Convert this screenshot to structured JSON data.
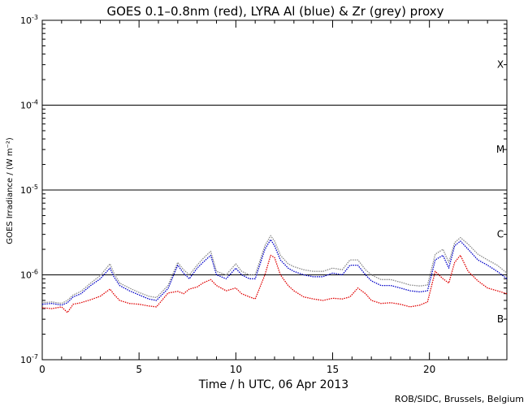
{
  "chart_data": {
    "type": "line",
    "title": "GOES 0.1–0.8nm (red), LYRA Al (blue) & Zr (grey) proxy",
    "xlabel": "Time / h UTC, 06 Apr 2013",
    "ylabel": "GOES Irradiance / (W m⁻²)",
    "credit": "ROB/SIDC, Brussels, Belgium",
    "xlim": [
      0,
      24
    ],
    "ylim": [
      1e-07,
      0.001
    ],
    "yscale": "log",
    "xticks": [
      0,
      5,
      10,
      15,
      20
    ],
    "xtick_labels": [
      "0",
      "5",
      "10",
      "15",
      "20"
    ],
    "yticks": [
      {
        "base": "10",
        "exp": "-7",
        "value": 1e-07
      },
      {
        "base": "10",
        "exp": "-6",
        "value": 1e-06
      },
      {
        "base": "10",
        "exp": "-5",
        "value": 1e-05
      },
      {
        "base": "10",
        "exp": "-4",
        "value": 0.0001
      },
      {
        "base": "10",
        "exp": "-3",
        "value": 0.001
      }
    ],
    "flare_lines": [
      1e-06,
      1e-05,
      0.0001
    ],
    "flare_classes": [
      {
        "label": "X",
        "value": 0.0003
      },
      {
        "label": "M",
        "value": 3e-05
      },
      {
        "label": "C",
        "value": 3e-06
      },
      {
        "label": "B",
        "value": 3e-07
      }
    ],
    "colors": {
      "goes": "#e00000",
      "al": "#0000c8",
      "zr": "#888888",
      "axis": "#000000"
    },
    "series": [
      {
        "name": "GOES 0.1-0.8nm",
        "color": "#e00000",
        "x": [
          0,
          0.5,
          1.0,
          1.3,
          1.6,
          2.0,
          2.5,
          3.0,
          3.5,
          3.7,
          4.0,
          4.5,
          5.0,
          5.5,
          5.9,
          6.5,
          7.0,
          7.3,
          7.6,
          8.0,
          8.3,
          8.7,
          9.0,
          9.5,
          10.0,
          10.3,
          10.7,
          11.0,
          11.5,
          11.8,
          12.0,
          12.3,
          12.7,
          13.0,
          13.5,
          14.0,
          14.5,
          15.0,
          15.5,
          15.9,
          16.3,
          16.7,
          17.0,
          17.5,
          18.0,
          18.5,
          19.0,
          19.5,
          19.9,
          20.3,
          20.7,
          21.0,
          21.3,
          21.6,
          22.0,
          22.5,
          23.0,
          23.5,
          24.0
        ],
        "y": [
          4.1e-07,
          4e-07,
          4.2e-07,
          3.6e-07,
          4.5e-07,
          4.7e-07,
          5.1e-07,
          5.6e-07,
          6.8e-07,
          5.9e-07,
          5e-07,
          4.6e-07,
          4.5e-07,
          4.3e-07,
          4.2e-07,
          6.1e-07,
          6.4e-07,
          6e-07,
          6.8e-07,
          7.2e-07,
          8e-07,
          8.8e-07,
          7.5e-07,
          6.5e-07,
          7e-07,
          6e-07,
          5.5e-07,
          5.2e-07,
          1e-06,
          1.7e-06,
          1.6e-06,
          1e-06,
          7.5e-07,
          6.5e-07,
          5.5e-07,
          5.2e-07,
          5e-07,
          5.3e-07,
          5.2e-07,
          5.5e-07,
          7e-07,
          6e-07,
          5e-07,
          4.6e-07,
          4.7e-07,
          4.5e-07,
          4.2e-07,
          4.4e-07,
          4.8e-07,
          1.1e-06,
          9e-07,
          8e-07,
          1.4e-06,
          1.7e-06,
          1.1e-06,
          8.5e-07,
          7e-07,
          6.5e-07,
          6e-07
        ]
      },
      {
        "name": "LYRA Al proxy",
        "color": "#0000c8",
        "x": [
          0,
          0.5,
          1.0,
          1.3,
          1.6,
          2.0,
          2.5,
          3.0,
          3.5,
          3.7,
          4.0,
          4.5,
          5.0,
          5.5,
          5.9,
          6.5,
          7.0,
          7.3,
          7.6,
          8.0,
          8.3,
          8.7,
          9.0,
          9.5,
          10.0,
          10.3,
          10.7,
          11.0,
          11.5,
          11.8,
          12.0,
          12.3,
          12.7,
          13.0,
          13.5,
          14.0,
          14.5,
          15.0,
          15.5,
          15.9,
          16.3,
          16.7,
          17.0,
          17.5,
          18.0,
          18.5,
          19.0,
          19.5,
          19.9,
          20.3,
          20.7,
          21.0,
          21.3,
          21.6,
          22.0,
          22.5,
          23.0,
          23.5,
          24.0
        ],
        "y": [
          4.5e-07,
          4.6e-07,
          4.4e-07,
          4.7e-07,
          5.5e-07,
          6e-07,
          7.5e-07,
          9e-07,
          1.2e-06,
          9.5e-07,
          7.5e-07,
          6.5e-07,
          5.8e-07,
          5.2e-07,
          5e-07,
          6.9e-07,
          1.3e-06,
          1.05e-06,
          9e-07,
          1.2e-06,
          1.4e-06,
          1.7e-06,
          1e-06,
          9e-07,
          1.2e-06,
          1e-06,
          9e-07,
          9e-07,
          2e-06,
          2.6e-06,
          2.2e-06,
          1.5e-06,
          1.2e-06,
          1.1e-06,
          1e-06,
          9.5e-07,
          9.5e-07,
          1.05e-06,
          1e-06,
          1.3e-06,
          1.3e-06,
          1e-06,
          8.5e-07,
          7.5e-07,
          7.5e-07,
          7e-07,
          6.5e-07,
          6.3e-07,
          6.5e-07,
          1.5e-06,
          1.7e-06,
          1.2e-06,
          2.2e-06,
          2.5e-06,
          2e-06,
          1.5e-06,
          1.3e-06,
          1.1e-06,
          9e-07
        ]
      },
      {
        "name": "LYRA Zr proxy",
        "color": "#888888",
        "x": [
          0,
          0.5,
          1.0,
          1.3,
          1.6,
          2.0,
          2.5,
          3.0,
          3.5,
          3.7,
          4.0,
          4.5,
          5.0,
          5.5,
          5.9,
          6.5,
          7.0,
          7.3,
          7.6,
          8.0,
          8.3,
          8.7,
          9.0,
          9.5,
          10.0,
          10.3,
          10.7,
          11.0,
          11.5,
          11.8,
          12.0,
          12.3,
          12.7,
          13.0,
          13.5,
          14.0,
          14.5,
          15.0,
          15.5,
          15.9,
          16.3,
          16.7,
          17.0,
          17.5,
          18.0,
          18.5,
          19.0,
          19.5,
          19.9,
          20.3,
          20.7,
          21.0,
          21.3,
          21.6,
          22.0,
          22.5,
          23.0,
          23.5,
          24.0
        ],
        "y": [
          4.7e-07,
          4.8e-07,
          4.6e-07,
          5e-07,
          5.8e-07,
          6.4e-07,
          8e-07,
          9.8e-07,
          1.35e-06,
          1.05e-06,
          8e-07,
          7e-07,
          6.2e-07,
          5.6e-07,
          5.4e-07,
          7.5e-07,
          1.4e-06,
          1.15e-06,
          1e-06,
          1.3e-06,
          1.55e-06,
          1.9e-06,
          1.1e-06,
          1e-06,
          1.35e-06,
          1.1e-06,
          1e-06,
          1e-06,
          2.2e-06,
          2.9e-06,
          2.5e-06,
          1.7e-06,
          1.35e-06,
          1.25e-06,
          1.15e-06,
          1.1e-06,
          1.1e-06,
          1.2e-06,
          1.15e-06,
          1.5e-06,
          1.5e-06,
          1.15e-06,
          1e-06,
          8.8e-07,
          8.8e-07,
          8.2e-07,
          7.6e-07,
          7.4e-07,
          7.6e-07,
          1.75e-06,
          2e-06,
          1.4e-06,
          2.4e-06,
          2.75e-06,
          2.3e-06,
          1.75e-06,
          1.5e-06,
          1.3e-06,
          1.05e-06
        ]
      }
    ]
  }
}
